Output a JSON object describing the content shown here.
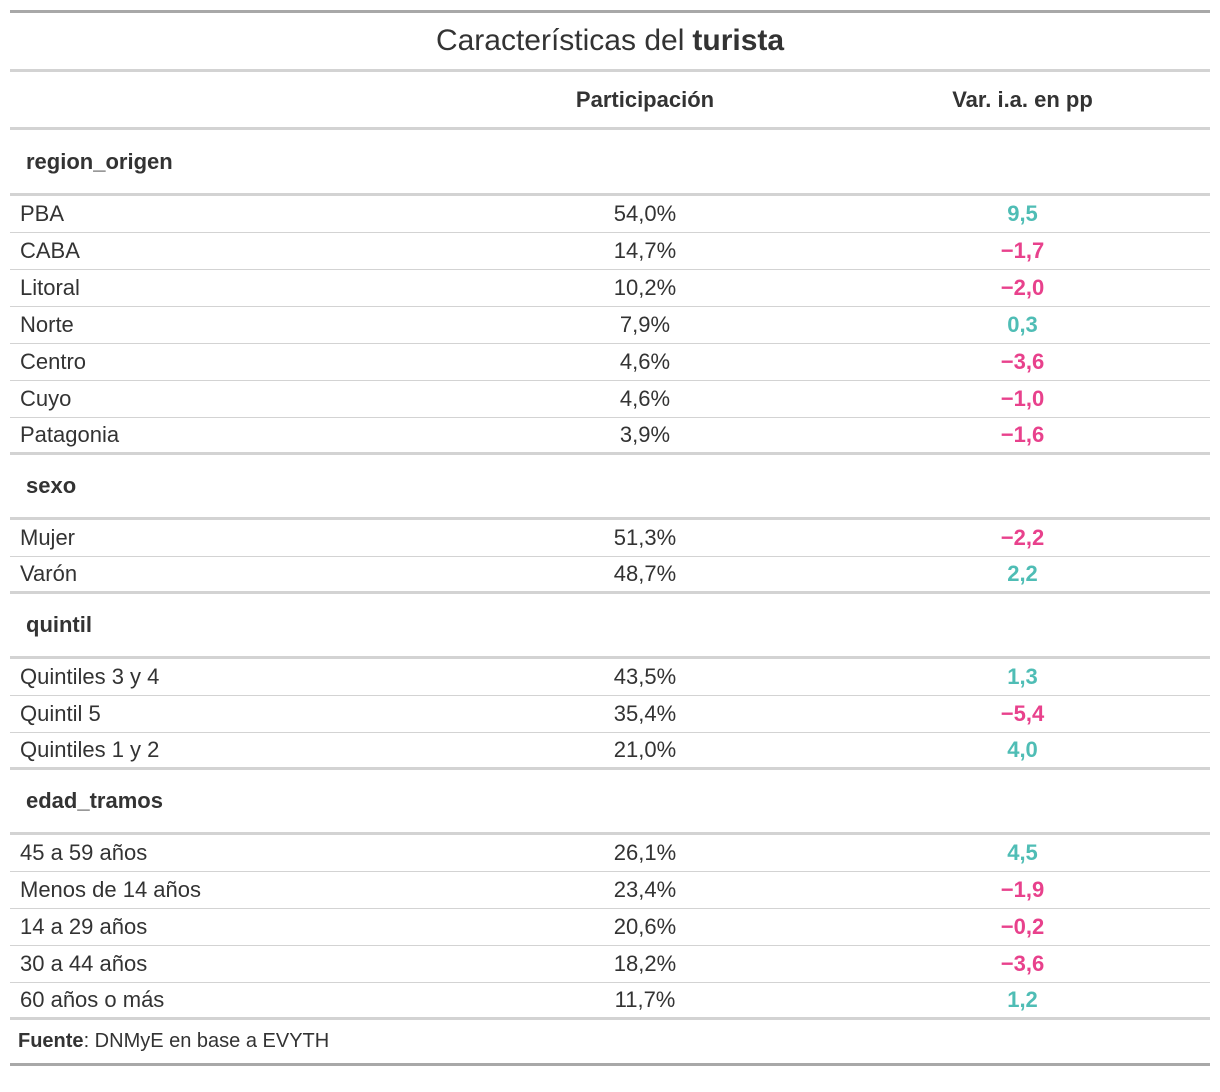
{
  "table": {
    "title_light": "Características del",
    "title_bold": "turista",
    "columns": {
      "participacion": "Participación",
      "variacion": "Var. i.a. en pp"
    },
    "colors": {
      "positive": "#4fbdb5",
      "negative": "#e8418c"
    },
    "groups": [
      {
        "name": "region_origen",
        "rows": [
          {
            "label": "PBA",
            "participacion": "54,0%",
            "variacion": "9,5",
            "sign": "pos"
          },
          {
            "label": "CABA",
            "participacion": "14,7%",
            "variacion": "−1,7",
            "sign": "neg"
          },
          {
            "label": "Litoral",
            "participacion": "10,2%",
            "variacion": "−2,0",
            "sign": "neg"
          },
          {
            "label": "Norte",
            "participacion": "7,9%",
            "variacion": "0,3",
            "sign": "pos"
          },
          {
            "label": "Centro",
            "participacion": "4,6%",
            "variacion": "−3,6",
            "sign": "neg"
          },
          {
            "label": "Cuyo",
            "participacion": "4,6%",
            "variacion": "−1,0",
            "sign": "neg"
          },
          {
            "label": "Patagonia",
            "participacion": "3,9%",
            "variacion": "−1,6",
            "sign": "neg"
          }
        ]
      },
      {
        "name": "sexo",
        "rows": [
          {
            "label": "Mujer",
            "participacion": "51,3%",
            "variacion": "−2,2",
            "sign": "neg"
          },
          {
            "label": "Varón",
            "participacion": "48,7%",
            "variacion": "2,2",
            "sign": "pos"
          }
        ]
      },
      {
        "name": "quintil",
        "rows": [
          {
            "label": "Quintiles 3 y 4",
            "participacion": "43,5%",
            "variacion": "1,3",
            "sign": "pos"
          },
          {
            "label": "Quintil 5",
            "participacion": "35,4%",
            "variacion": "−5,4",
            "sign": "neg"
          },
          {
            "label": "Quintiles 1 y 2",
            "participacion": "21,0%",
            "variacion": "4,0",
            "sign": "pos"
          }
        ]
      },
      {
        "name": "edad_tramos",
        "rows": [
          {
            "label": "45 a 59 años",
            "participacion": "26,1%",
            "variacion": "4,5",
            "sign": "pos"
          },
          {
            "label": "Menos de 14 años",
            "participacion": "23,4%",
            "variacion": "−1,9",
            "sign": "neg"
          },
          {
            "label": "14 a 29 años",
            "participacion": "20,6%",
            "variacion": "−0,2",
            "sign": "neg"
          },
          {
            "label": "30 a 44 años",
            "participacion": "18,2%",
            "variacion": "−3,6",
            "sign": "neg"
          },
          {
            "label": "60 años o más",
            "participacion": "11,7%",
            "variacion": "1,2",
            "sign": "pos"
          }
        ]
      }
    ],
    "footer": {
      "source_label": "Fuente",
      "source_text": ": DNMyE en base a EVYTH"
    }
  }
}
